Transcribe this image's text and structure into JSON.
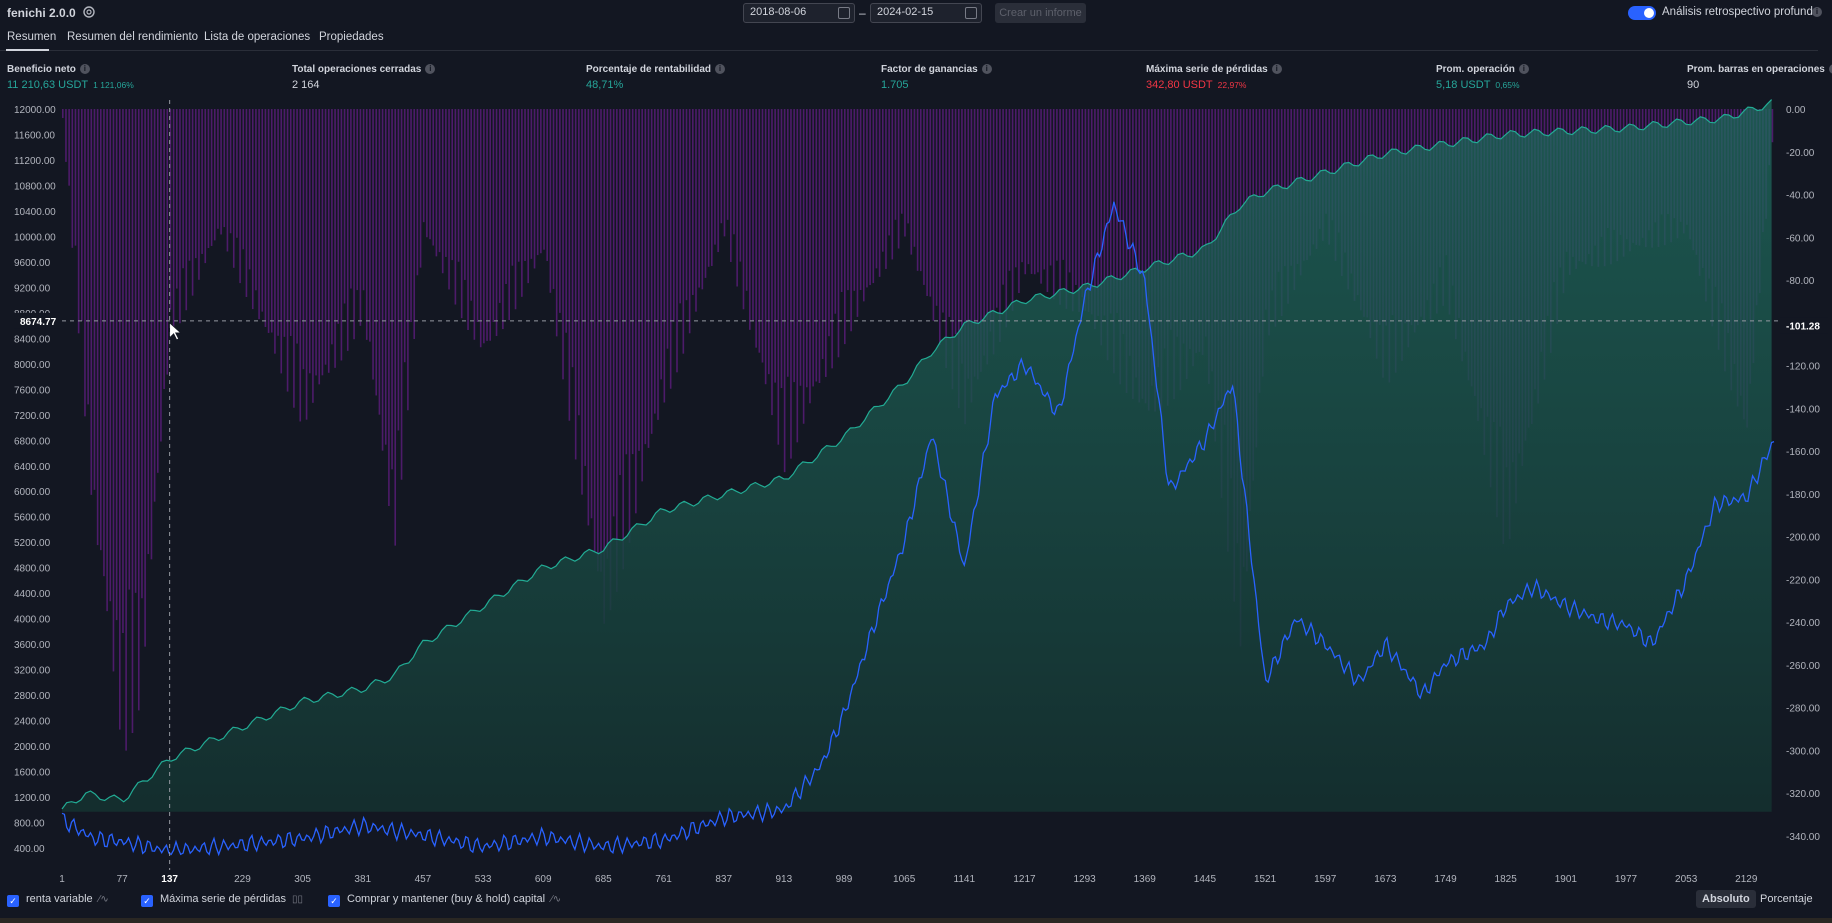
{
  "header": {
    "strategy_name": "fenichi 2.0.0",
    "date_from": "2018-08-06",
    "date_to": "2024-02-15",
    "date_separator": "–",
    "report_button": "Crear un informe",
    "deep_backtest_label": "Análisis retrospectivo profundo",
    "deep_backtest_enabled": true
  },
  "tabs": [
    {
      "label": "Resumen",
      "active": true
    },
    {
      "label": "Resumen del rendimiento",
      "active": false
    },
    {
      "label": "Lista de operaciones",
      "active": false
    },
    {
      "label": "Propiedades",
      "active": false
    }
  ],
  "metrics": [
    {
      "label": "Beneficio neto",
      "value": "11 210,63 USDT",
      "sub": "1 121,06%",
      "color": "green"
    },
    {
      "label": "Total operaciones cerradas",
      "value": "2 164",
      "sub": "",
      "color": "white"
    },
    {
      "label": "Porcentaje de rentabilidad",
      "value": "48,71%",
      "sub": "",
      "color": "green"
    },
    {
      "label": "Factor de ganancias",
      "value": "1.705",
      "sub": "",
      "color": "green"
    },
    {
      "label": "Máxima serie de pérdidas",
      "value": "342,80 USDT",
      "sub": "22,97%",
      "color": "red"
    },
    {
      "label": "Prom. operación",
      "value": "5,18 USDT",
      "sub": "0,65%",
      "color": "green"
    },
    {
      "label": "Prom. barras en operaciones",
      "value": "90",
      "sub": "",
      "color": "white"
    }
  ],
  "chart_data": {
    "type": "area",
    "x_ticks": [
      "1",
      "77",
      "137",
      "229",
      "305",
      "381",
      "457",
      "533",
      "609",
      "685",
      "761",
      "837",
      "913",
      "989",
      "1065",
      "1141",
      "1217",
      "1293",
      "1369",
      "1445",
      "1521",
      "1597",
      "1673",
      "1749",
      "1825",
      "1901",
      "1977",
      "2053",
      "2129"
    ],
    "y_left_ticks": [
      "12000.00",
      "11600.00",
      "11200.00",
      "10800.00",
      "10400.00",
      "10000.00",
      "9600.00",
      "9200.00",
      "8800.00",
      "8400.00",
      "8000.00",
      "7600.00",
      "7200.00",
      "6800.00",
      "6400.00",
      "6000.00",
      "5600.00",
      "5200.00",
      "4800.00",
      "4400.00",
      "4000.00",
      "3600.00",
      "3200.00",
      "2800.00",
      "2400.00",
      "2000.00",
      "1600.00",
      "1200.00",
      "800.00",
      "400.00"
    ],
    "y_right_ticks": [
      "0.00",
      "-20.00",
      "-40.00",
      "-60.00",
      "-80.00",
      "-101.28",
      "-120.00",
      "-140.00",
      "-160.00",
      "-180.00",
      "-200.00",
      "-220.00",
      "-240.00",
      "-260.00",
      "-280.00",
      "-300.00",
      "-320.00",
      "-340.00"
    ],
    "y_left_range": [
      400,
      12000
    ],
    "y_right_range": [
      -340,
      0
    ],
    "x_range": [
      1,
      2164
    ],
    "crosshair": {
      "x_label": "137",
      "y_label": "8674.77",
      "right_label": "-101.28"
    },
    "series": [
      {
        "name": "renta variable",
        "color": "#22ab94",
        "points": [
          [
            1,
            1000
          ],
          [
            30,
            1250
          ],
          [
            77,
            1150
          ],
          [
            100,
            1400
          ],
          [
            137,
            1800
          ],
          [
            229,
            2300
          ],
          [
            305,
            2700
          ],
          [
            381,
            2900
          ],
          [
            420,
            3100
          ],
          [
            457,
            3600
          ],
          [
            533,
            4200
          ],
          [
            609,
            4800
          ],
          [
            685,
            5100
          ],
          [
            761,
            5700
          ],
          [
            837,
            5950
          ],
          [
            913,
            6200
          ],
          [
            989,
            6850
          ],
          [
            1065,
            7700
          ],
          [
            1100,
            8200
          ],
          [
            1141,
            8600
          ],
          [
            1180,
            8800
          ],
          [
            1217,
            9000
          ],
          [
            1293,
            9200
          ],
          [
            1369,
            9500
          ],
          [
            1445,
            9800
          ],
          [
            1490,
            10500
          ],
          [
            1521,
            10700
          ],
          [
            1597,
            11000
          ],
          [
            1673,
            11300
          ],
          [
            1749,
            11450
          ],
          [
            1825,
            11600
          ],
          [
            1901,
            11650
          ],
          [
            1977,
            11700
          ],
          [
            2053,
            11800
          ],
          [
            2100,
            11850
          ],
          [
            2164,
            12100
          ]
        ]
      },
      {
        "name": "Comprar y mantener (buy & hold) capital",
        "color": "#2962ff",
        "points": [
          [
            1,
            850
          ],
          [
            40,
            550
          ],
          [
            77,
            500
          ],
          [
            137,
            350
          ],
          [
            200,
            420
          ],
          [
            305,
            550
          ],
          [
            381,
            750
          ],
          [
            457,
            600
          ],
          [
            533,
            420
          ],
          [
            609,
            580
          ],
          [
            685,
            420
          ],
          [
            761,
            520
          ],
          [
            837,
            880
          ],
          [
            913,
            1000
          ],
          [
            960,
            1700
          ],
          [
            989,
            2500
          ],
          [
            1030,
            4000
          ],
          [
            1065,
            5200
          ],
          [
            1100,
            6900
          ],
          [
            1141,
            4800
          ],
          [
            1180,
            7500
          ],
          [
            1217,
            8000
          ],
          [
            1260,
            7200
          ],
          [
            1293,
            9000
          ],
          [
            1330,
            10500
          ],
          [
            1369,
            9300
          ],
          [
            1400,
            6000
          ],
          [
            1445,
            6800
          ],
          [
            1480,
            7700
          ],
          [
            1521,
            3000
          ],
          [
            1560,
            4000
          ],
          [
            1597,
            3600
          ],
          [
            1640,
            3000
          ],
          [
            1673,
            3600
          ],
          [
            1720,
            2800
          ],
          [
            1749,
            3300
          ],
          [
            1800,
            3600
          ],
          [
            1825,
            4200
          ],
          [
            1860,
            4500
          ],
          [
            1901,
            4200
          ],
          [
            1940,
            4000
          ],
          [
            1977,
            3900
          ],
          [
            2010,
            3600
          ],
          [
            2053,
            4600
          ],
          [
            2090,
            5800
          ],
          [
            2129,
            5900
          ],
          [
            2164,
            6800
          ]
        ]
      },
      {
        "name": "Máxima serie de pérdidas",
        "color": "#7e1fa6",
        "points": [
          [
            1,
            -5
          ],
          [
            40,
            -200
          ],
          [
            77,
            -305
          ],
          [
            100,
            -280
          ],
          [
            137,
            -110
          ],
          [
            200,
            -60
          ],
          [
            305,
            -150
          ],
          [
            381,
            -100
          ],
          [
            420,
            -210
          ],
          [
            457,
            -60
          ],
          [
            533,
            -120
          ],
          [
            609,
            -70
          ],
          [
            685,
            -250
          ],
          [
            761,
            -140
          ],
          [
            837,
            -60
          ],
          [
            913,
            -170
          ],
          [
            989,
            -110
          ],
          [
            1065,
            -60
          ],
          [
            1141,
            -150
          ],
          [
            1217,
            -80
          ],
          [
            1293,
            -100
          ],
          [
            1369,
            -150
          ],
          [
            1445,
            -120
          ],
          [
            1490,
            -260
          ],
          [
            1521,
            -110
          ],
          [
            1597,
            -60
          ],
          [
            1673,
            -130
          ],
          [
            1749,
            -90
          ],
          [
            1825,
            -210
          ],
          [
            1901,
            -80
          ],
          [
            1977,
            -70
          ],
          [
            2053,
            -60
          ],
          [
            2129,
            -160
          ],
          [
            2164,
            -2
          ]
        ]
      }
    ]
  },
  "footer": {
    "legend": [
      {
        "label": "renta variable",
        "checked": true,
        "icon": "line-chart-icon"
      },
      {
        "label": "Máxima serie de pérdidas",
        "checked": true,
        "icon": "bar-chart-icon"
      },
      {
        "label": "Comprar y mantener (buy & hold) capital",
        "checked": true,
        "icon": "line-chart-icon"
      }
    ],
    "absolute_label": "Absoluto",
    "percent_label": "Porcentaje"
  }
}
